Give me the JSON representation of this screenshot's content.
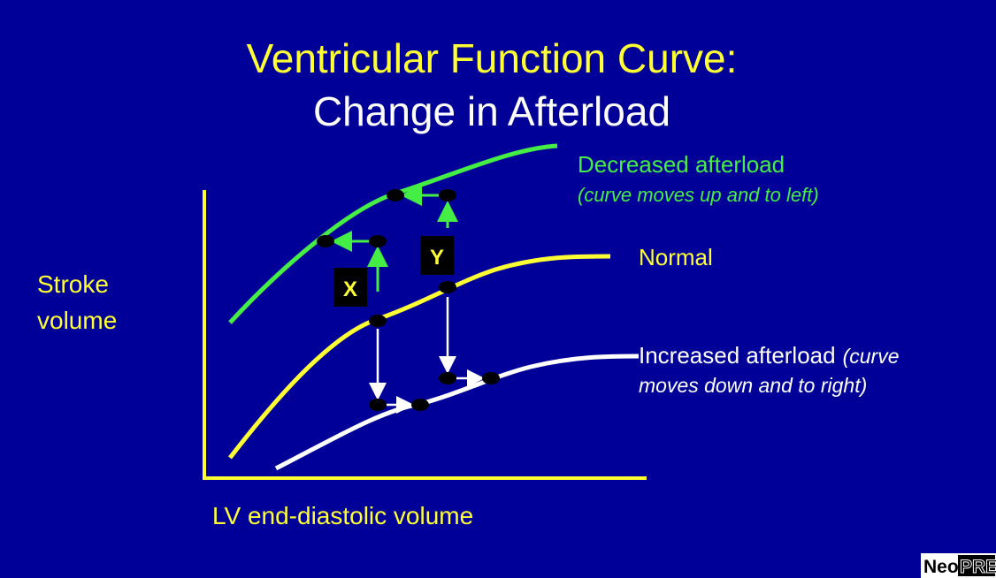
{
  "title": {
    "line1": "Ventricular Function Curve:",
    "line2": "Change in Afterload"
  },
  "axes": {
    "y_label_line1": "Stroke",
    "y_label_line2": "volume",
    "x_label": "LV end-diastolic volume"
  },
  "curves": {
    "decreased": {
      "label": "Decreased afterload",
      "note": "(curve moves up and to left)"
    },
    "normal": {
      "label": "Normal"
    },
    "increased": {
      "label": "Increased afterload",
      "note_line1": "(curve",
      "note_line2": "moves down and to right)"
    }
  },
  "markers": {
    "x": "X",
    "y": "Y"
  },
  "logo": {
    "part1": "Neo",
    "part2": "PRE"
  }
}
